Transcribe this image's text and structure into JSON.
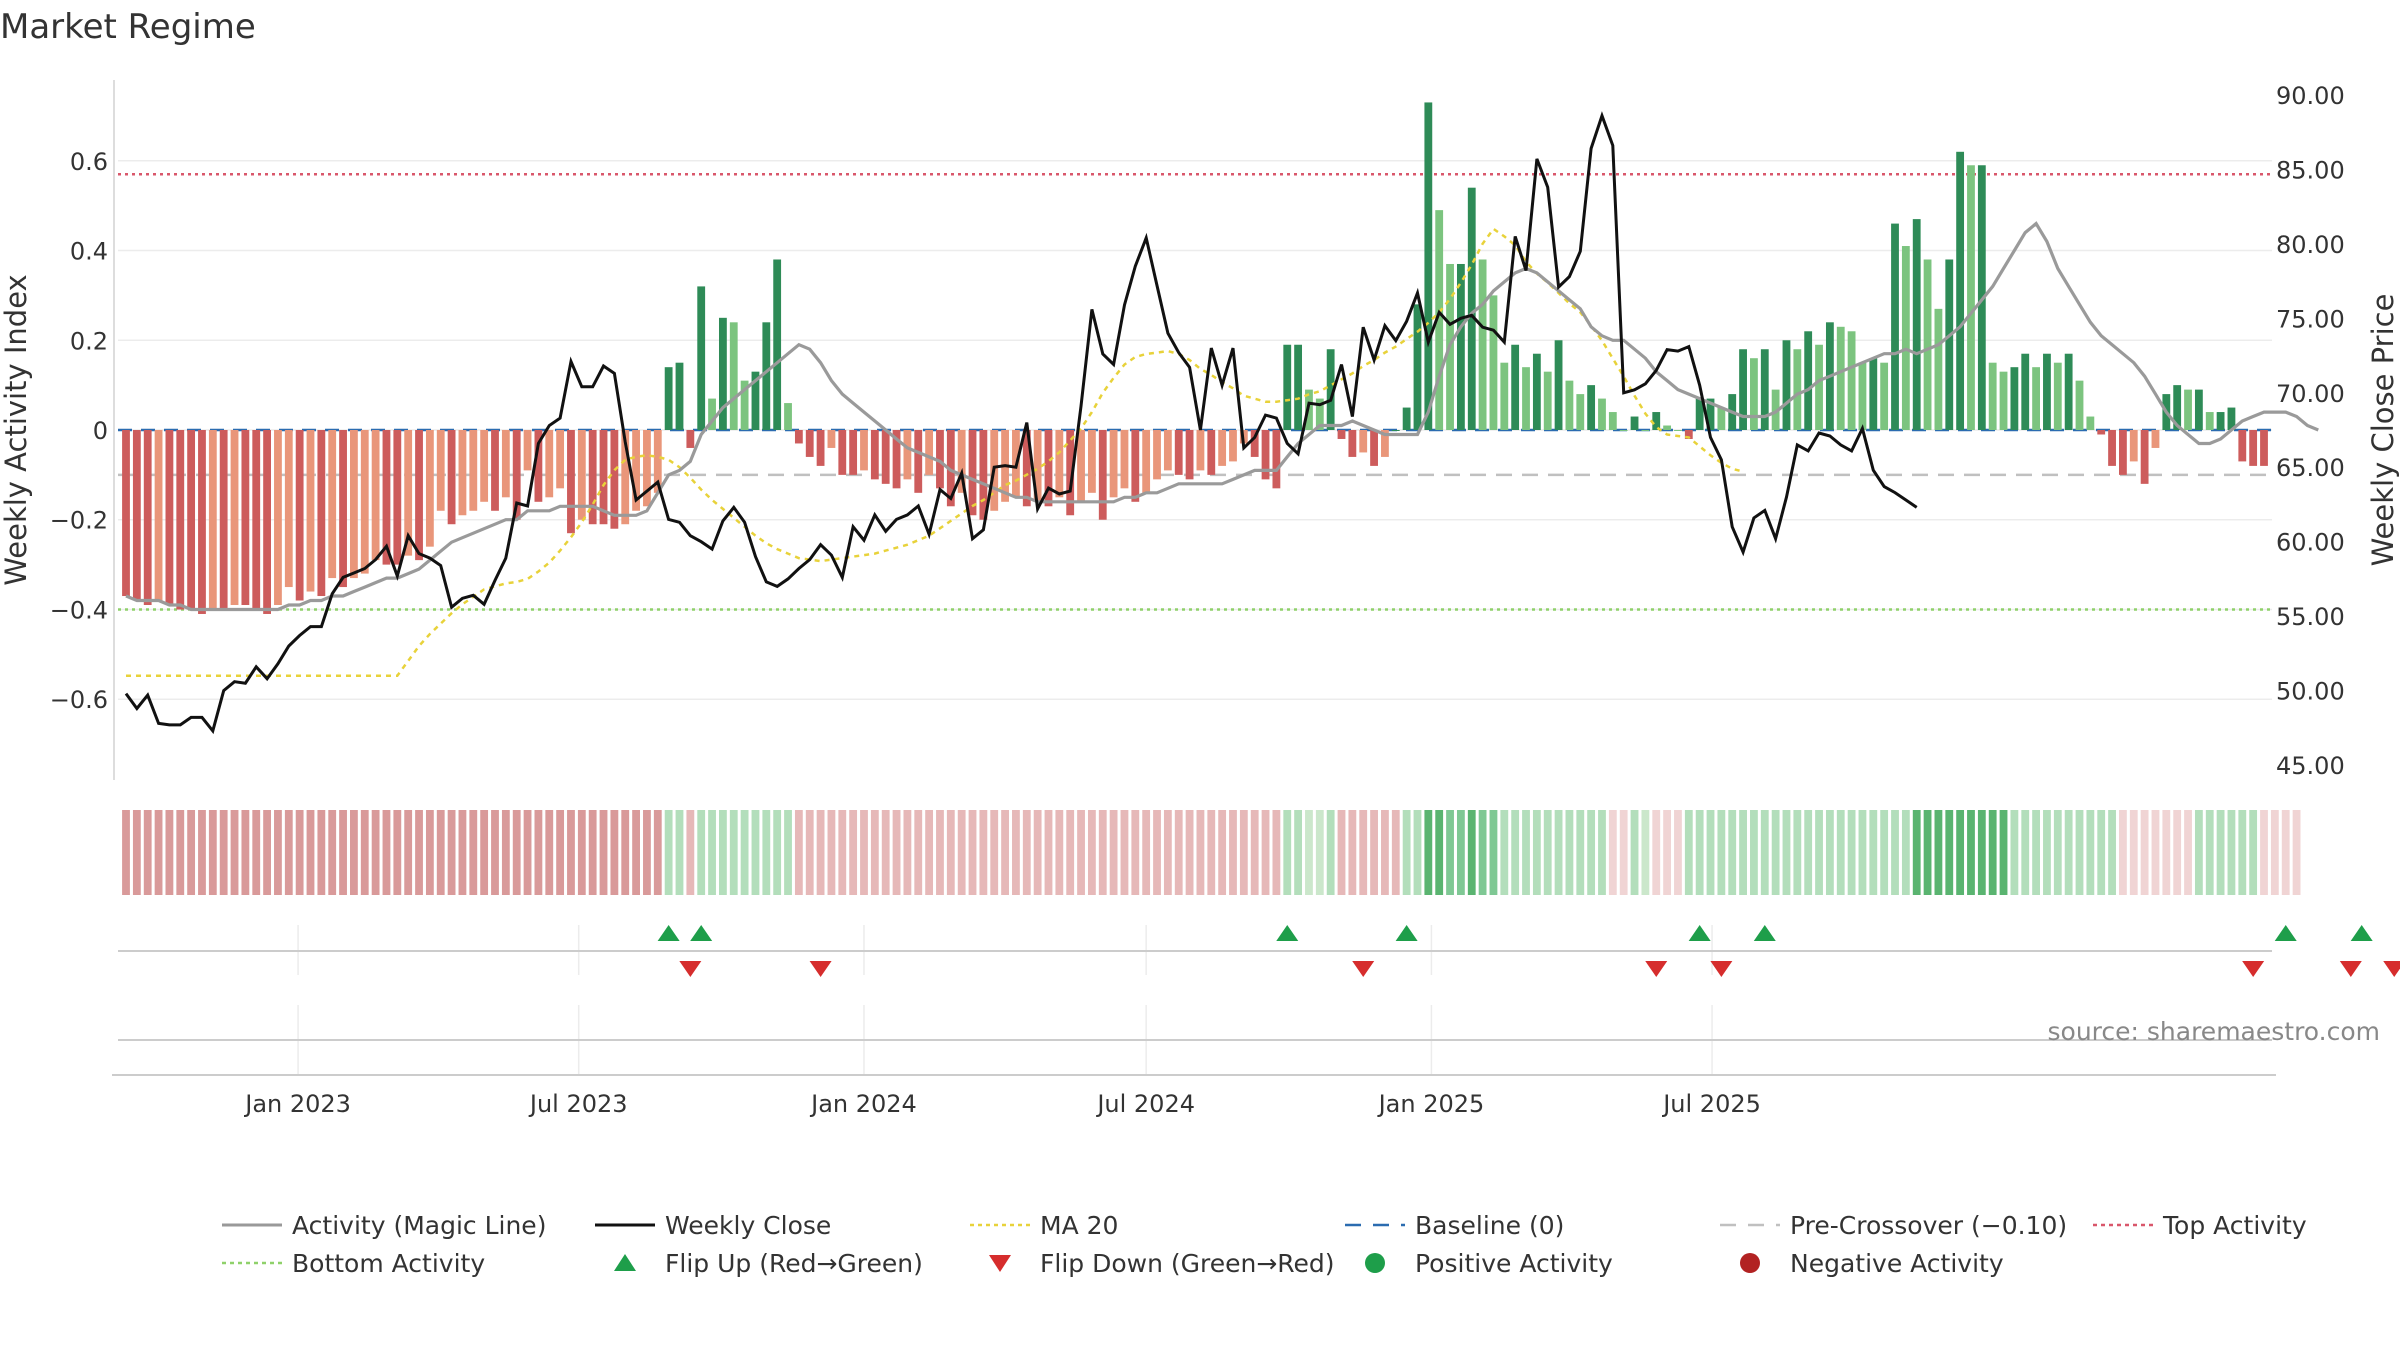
{
  "chart_data": {
    "type": "bar",
    "title": "Market Regime",
    "ylabel_left": "Weekly Activity Index",
    "ylabel_right": "Weekly Close Price",
    "source": "source: sharemaestro.com",
    "left_ylim": [
      -0.78,
      0.78
    ],
    "left_ticks": [
      "−0.6",
      "−0.4",
      "−0.2",
      "0",
      "0.2",
      "0.4",
      "0.6"
    ],
    "left_tick_values": [
      -0.6,
      -0.4,
      -0.2,
      0,
      0.2,
      0.4,
      0.6
    ],
    "right_ylim": [
      44,
      91
    ],
    "right_ticks": [
      "45.00",
      "50.00",
      "55.00",
      "60.00",
      "65.00",
      "70.00",
      "75.00",
      "80.00",
      "85.00",
      "90.00"
    ],
    "right_tick_values": [
      45,
      50,
      55,
      60,
      65,
      70,
      75,
      80,
      85,
      90
    ],
    "x_start": "2022-09-12",
    "x_ticks": [
      "Jan 2023",
      "Jul 2023",
      "Jan 2024",
      "Jul 2024",
      "Jan 2025",
      "Jul 2025"
    ],
    "x_tick_dates": [
      "2023-01-01",
      "2023-07-01",
      "2024-01-01",
      "2024-07-01",
      "2025-01-01",
      "2025-07-01"
    ],
    "top_activity": 0.57,
    "bottom_activity": -0.4,
    "pre_crossover": -0.1,
    "baseline": 0,
    "activity": [
      -0.37,
      -0.38,
      -0.39,
      -0.38,
      -0.39,
      -0.4,
      -0.4,
      -0.41,
      -0.4,
      -0.4,
      -0.39,
      -0.39,
      -0.4,
      -0.41,
      -0.39,
      -0.35,
      -0.38,
      -0.36,
      -0.37,
      -0.33,
      -0.35,
      -0.33,
      -0.32,
      -0.29,
      -0.3,
      -0.3,
      -0.28,
      -0.29,
      -0.26,
      -0.18,
      -0.21,
      -0.19,
      -0.18,
      -0.16,
      -0.18,
      -0.15,
      -0.2,
      -0.09,
      -0.16,
      -0.15,
      -0.13,
      -0.23,
      -0.2,
      -0.21,
      -0.21,
      -0.22,
      -0.21,
      -0.18,
      -0.17,
      -0.14,
      0.14,
      0.15,
      -0.04,
      0.32,
      0.07,
      0.25,
      0.24,
      0.11,
      0.13,
      0.24,
      0.38,
      0.06,
      -0.03,
      -0.06,
      -0.08,
      -0.04,
      -0.1,
      -0.1,
      -0.09,
      -0.11,
      -0.12,
      -0.13,
      -0.11,
      -0.14,
      -0.1,
      -0.13,
      -0.17,
      -0.14,
      -0.19,
      -0.2,
      -0.18,
      -0.16,
      -0.15,
      -0.17,
      -0.16,
      -0.17,
      -0.15,
      -0.19,
      -0.16,
      -0.14,
      -0.2,
      -0.15,
      -0.13,
      -0.16,
      -0.14,
      -0.11,
      -0.09,
      -0.1,
      -0.11,
      -0.09,
      -0.1,
      -0.08,
      -0.07,
      -0.03,
      -0.06,
      -0.11,
      -0.13,
      0.19,
      0.19,
      0.09,
      0.07,
      0.18,
      -0.02,
      -0.06,
      -0.05,
      -0.08,
      -0.06,
      0.0,
      0.05,
      0.28,
      0.73,
      0.49,
      0.37,
      0.37,
      0.54,
      0.38,
      0.3,
      0.15,
      0.19,
      0.14,
      0.17,
      0.13,
      0.2,
      0.11,
      0.08,
      0.1,
      0.07,
      0.04,
      0.0,
      0.03,
      0.0,
      0.04,
      0.01,
      0.0,
      -0.02,
      0.07,
      0.07,
      0.05,
      0.08,
      0.18,
      0.16,
      0.18,
      0.09,
      0.2,
      0.18,
      0.22,
      0.19,
      0.24,
      0.23,
      0.22,
      0.15,
      0.16,
      0.15,
      0.46,
      0.41,
      0.47,
      0.38,
      0.27,
      0.38,
      0.62,
      0.59,
      0.59,
      0.15,
      0.13,
      0.14,
      0.17,
      0.14,
      0.17,
      0.15,
      0.17,
      0.11,
      0.03,
      -0.01,
      -0.08,
      -0.1,
      -0.07,
      -0.12,
      -0.04,
      0.08,
      0.1,
      0.09,
      0.09,
      0.04,
      0.04,
      0.05,
      -0.07,
      -0.08,
      -0.08
    ],
    "magic_line": [
      -0.37,
      -0.38,
      -0.38,
      -0.38,
      -0.39,
      -0.39,
      -0.4,
      -0.4,
      -0.4,
      -0.4,
      -0.4,
      -0.4,
      -0.4,
      -0.4,
      -0.4,
      -0.39,
      -0.39,
      -0.38,
      -0.38,
      -0.37,
      -0.37,
      -0.36,
      -0.35,
      -0.34,
      -0.33,
      -0.33,
      -0.32,
      -0.31,
      -0.29,
      -0.27,
      -0.25,
      -0.24,
      -0.23,
      -0.22,
      -0.21,
      -0.2,
      -0.2,
      -0.18,
      -0.18,
      -0.18,
      -0.17,
      -0.17,
      -0.17,
      -0.17,
      -0.18,
      -0.19,
      -0.19,
      -0.19,
      -0.18,
      -0.14,
      -0.1,
      -0.09,
      -0.07,
      -0.01,
      0.02,
      0.05,
      0.07,
      0.09,
      0.11,
      0.13,
      0.15,
      0.17,
      0.19,
      0.18,
      0.15,
      0.11,
      0.08,
      0.06,
      0.04,
      0.02,
      0.0,
      -0.02,
      -0.04,
      -0.05,
      -0.06,
      -0.07,
      -0.09,
      -0.1,
      -0.11,
      -0.12,
      -0.13,
      -0.14,
      -0.15,
      -0.15,
      -0.16,
      -0.16,
      -0.16,
      -0.16,
      -0.16,
      -0.16,
      -0.16,
      -0.16,
      -0.15,
      -0.15,
      -0.14,
      -0.14,
      -0.13,
      -0.12,
      -0.12,
      -0.12,
      -0.12,
      -0.12,
      -0.11,
      -0.1,
      -0.09,
      -0.09,
      -0.09,
      -0.06,
      -0.03,
      -0.01,
      0.01,
      0.01,
      0.01,
      0.02,
      0.01,
      0.0,
      -0.01,
      -0.01,
      -0.01,
      -0.01,
      0.04,
      0.12,
      0.19,
      0.23,
      0.26,
      0.28,
      0.31,
      0.33,
      0.35,
      0.36,
      0.35,
      0.33,
      0.31,
      0.29,
      0.27,
      0.23,
      0.21,
      0.2,
      0.2,
      0.18,
      0.16,
      0.13,
      0.11,
      0.09,
      0.08,
      0.07,
      0.06,
      0.05,
      0.04,
      0.03,
      0.03,
      0.03,
      0.04,
      0.06,
      0.08,
      0.09,
      0.11,
      0.12,
      0.13,
      0.14,
      0.15,
      0.16,
      0.17,
      0.17,
      0.18,
      0.17,
      0.18,
      0.19,
      0.21,
      0.23,
      0.26,
      0.29,
      0.32,
      0.36,
      0.4,
      0.44,
      0.46,
      0.42,
      0.36,
      0.32,
      0.28,
      0.24,
      0.21,
      0.19,
      0.17,
      0.15,
      0.12,
      0.08,
      0.04,
      0.01,
      -0.01,
      -0.03,
      -0.03,
      -0.02,
      0.0,
      0.02,
      0.03,
      0.04,
      0.04,
      0.04,
      0.03,
      0.01,
      0.0
    ],
    "weekly_close": [
      49.8,
      48.8,
      49.7,
      47.8,
      47.7,
      47.7,
      48.2,
      48.2,
      47.3,
      50.0,
      50.6,
      50.5,
      51.6,
      50.8,
      51.8,
      53.0,
      53.7,
      54.3,
      54.3,
      56.5,
      57.6,
      57.9,
      58.2,
      58.8,
      59.7,
      57.7,
      60.4,
      59.2,
      58.9,
      58.4,
      55.6,
      56.2,
      56.4,
      55.8,
      57.4,
      58.9,
      62.6,
      62.4,
      66.6,
      67.8,
      68.3,
      72.1,
      70.4,
      70.4,
      71.8,
      71.3,
      66.7,
      62.8,
      63.4,
      64.0,
      61.5,
      61.3,
      60.4,
      60.0,
      59.5,
      61.4,
      62.3,
      61.3,
      59.0,
      57.3,
      57.0,
      57.5,
      58.2,
      58.8,
      59.8,
      59.1,
      57.6,
      61.0,
      60.1,
      61.8,
      60.7,
      61.5,
      61.8,
      62.4,
      60.5,
      63.5,
      62.9,
      64.6,
      60.2,
      60.8,
      65.0,
      65.1,
      65.0,
      68.0,
      62.2,
      63.6,
      63.2,
      63.4,
      69.1,
      75.6,
      72.6,
      71.9,
      75.9,
      78.5,
      80.4,
      77.2,
      74.0,
      72.7,
      71.7,
      67.5,
      73.0,
      70.5,
      73.0,
      66.3,
      67.0,
      68.5,
      68.3,
      66.6,
      65.9,
      69.3,
      69.2,
      69.5,
      71.9,
      68.4,
      74.4,
      72.2,
      74.5,
      73.5,
      74.8,
      76.7,
      73.4,
      75.4,
      74.6,
      75.0,
      75.2,
      74.4,
      74.2,
      73.4,
      80.5,
      78.2,
      85.7,
      83.8,
      77.1,
      77.8,
      79.5,
      86.4,
      88.6,
      86.6,
      70.0,
      70.2,
      70.6,
      71.5,
      72.9,
      72.8,
      73.1,
      70.5,
      67.0,
      65.5,
      61.0,
      59.3,
      61.6,
      62.1,
      60.2,
      63.0,
      66.5,
      66.1,
      67.3,
      67.1,
      66.5,
      66.1,
      67.6,
      64.8,
      63.7,
      63.3,
      62.8,
      62.3
    ],
    "ma20": [
      51.0,
      51.0,
      51.0,
      51.0,
      51.0,
      51.0,
      51.0,
      51.0,
      51.0,
      51.0,
      51.0,
      51.0,
      51.0,
      51.0,
      51.0,
      51.0,
      51.0,
      51.0,
      51.0,
      51.0,
      51.0,
      51.0,
      51.0,
      51.0,
      51.0,
      51.0,
      52.0,
      53.0,
      53.8,
      54.5,
      55.2,
      55.8,
      56.3,
      56.8,
      57.0,
      57.2,
      57.3,
      57.5,
      58.0,
      58.6,
      59.4,
      60.3,
      61.3,
      62.5,
      63.8,
      64.8,
      65.5,
      65.7,
      65.8,
      65.7,
      65.5,
      65.0,
      64.3,
      63.5,
      62.8,
      62.2,
      61.6,
      61.0,
      60.4,
      59.9,
      59.5,
      59.2,
      58.9,
      58.8,
      58.7,
      58.8,
      58.9,
      59.0,
      59.1,
      59.2,
      59.4,
      59.6,
      59.8,
      60.1,
      60.4,
      60.9,
      61.4,
      61.9,
      62.4,
      62.8,
      63.3,
      63.8,
      64.1,
      64.5,
      64.9,
      65.4,
      66.0,
      66.8,
      67.6,
      68.7,
      70.0,
      71.0,
      71.9,
      72.4,
      72.6,
      72.7,
      72.8,
      72.6,
      72.2,
      71.6,
      71.2,
      70.7,
      70.3,
      69.8,
      69.6,
      69.4,
      69.4,
      69.5,
      69.6,
      69.9,
      70.1,
      70.5,
      70.9,
      71.3,
      71.8,
      72.2,
      72.7,
      73.1,
      73.6,
      74.1,
      74.7,
      75.4,
      76.3,
      77.4,
      78.6,
      80.0,
      81.0,
      80.5,
      79.9,
      78.8,
      78.0,
      77.4,
      76.7,
      76.0,
      75.4,
      74.5,
      73.5,
      72.3,
      71.1,
      69.8,
      68.6,
      67.7,
      67.2,
      67.1,
      67.0,
      66.4,
      65.8,
      65.3,
      64.9,
      64.7
    ],
    "regime_strip": [
      -3,
      -3,
      -3,
      -3,
      -3,
      -3,
      -3,
      -3,
      -3,
      -3,
      -3,
      -3,
      -3,
      -3,
      -3,
      -3,
      -3,
      -3,
      -3,
      -3,
      -3,
      -3,
      -3,
      -3,
      -3,
      -3,
      -3,
      -3,
      -3,
      -3,
      -3,
      -3,
      -3,
      -3,
      -3,
      -3,
      -3,
      -3,
      -3,
      -3,
      -3,
      -3,
      -3,
      -3,
      -3,
      -3,
      -3,
      -3,
      -3,
      -3,
      2,
      2,
      -2,
      2,
      2,
      2,
      2,
      2,
      2,
      2,
      2,
      2,
      -2,
      -2,
      -2,
      -2,
      -2,
      -2,
      -2,
      -2,
      -2,
      -2,
      -2,
      -2,
      -2,
      -2,
      -2,
      -2,
      -2,
      -2,
      -2,
      -2,
      -2,
      -2,
      -2,
      -2,
      -2,
      -2,
      -2,
      -2,
      -2,
      -2,
      -2,
      -2,
      -2,
      -2,
      -2,
      -2,
      -2,
      -2,
      -2,
      -2,
      -2,
      -2,
      -2,
      -2,
      -2,
      2,
      2,
      1,
      1,
      2,
      -2,
      -2,
      -2,
      -2,
      -2,
      -2,
      2,
      2,
      4,
      4,
      3,
      3,
      4,
      3,
      3,
      2,
      2,
      2,
      2,
      2,
      2,
      2,
      2,
      2,
      2,
      -1,
      -1,
      2,
      1,
      -1,
      -1,
      -1,
      2,
      2,
      2,
      2,
      2,
      2,
      2,
      2,
      2,
      2,
      2,
      2,
      2,
      2,
      2,
      2,
      2,
      2,
      2,
      2,
      2,
      4,
      4,
      4,
      4,
      4,
      4,
      4,
      4,
      4,
      2,
      2,
      2,
      2,
      2,
      2,
      2,
      2,
      2,
      2,
      -1,
      -1,
      -1,
      -1,
      -1,
      -1,
      -1,
      2,
      2,
      2,
      2,
      2,
      2,
      -1,
      -1,
      -1,
      -1
    ],
    "flips_up": [
      50,
      53,
      107,
      118,
      145,
      151,
      199,
      206
    ],
    "flips_down": [
      52,
      64,
      114,
      141,
      147,
      196,
      205,
      209
    ],
    "legend": [
      {
        "label": "Activity (Magic Line)",
        "color": "#999999",
        "style": "line"
      },
      {
        "label": "Weekly Close",
        "color": "#111111",
        "style": "line"
      },
      {
        "label": "MA 20",
        "color": "#e8d23a",
        "style": "dotted"
      },
      {
        "label": "Baseline (0)",
        "color": "#2b6cb0",
        "style": "dashed"
      },
      {
        "label": "Pre-Crossover (−0.10)",
        "color": "#c0c0c0",
        "style": "dashed"
      },
      {
        "label": "Top Activity",
        "color": "#d9576b",
        "style": "dotted"
      },
      {
        "label": "Bottom Activity",
        "color": "#8fd16a",
        "style": "dotted"
      },
      {
        "label": "Flip Up (Red→Green)",
        "color": "#1e9e4a",
        "style": "triangle-up"
      },
      {
        "label": "Flip Down (Green→Red)",
        "color": "#d62d2d",
        "style": "triangle-down"
      },
      {
        "label": "Positive Activity",
        "color": "#1e9e4a",
        "style": "circle"
      },
      {
        "label": "Negative Activity",
        "color": "#b22222",
        "style": "circle"
      }
    ],
    "colors": {
      "pos_dark": "#2e8b57",
      "pos_light": "#7cc47f",
      "neg_dark": "#cd5c5c",
      "neg_light": "#e9967a"
    }
  }
}
